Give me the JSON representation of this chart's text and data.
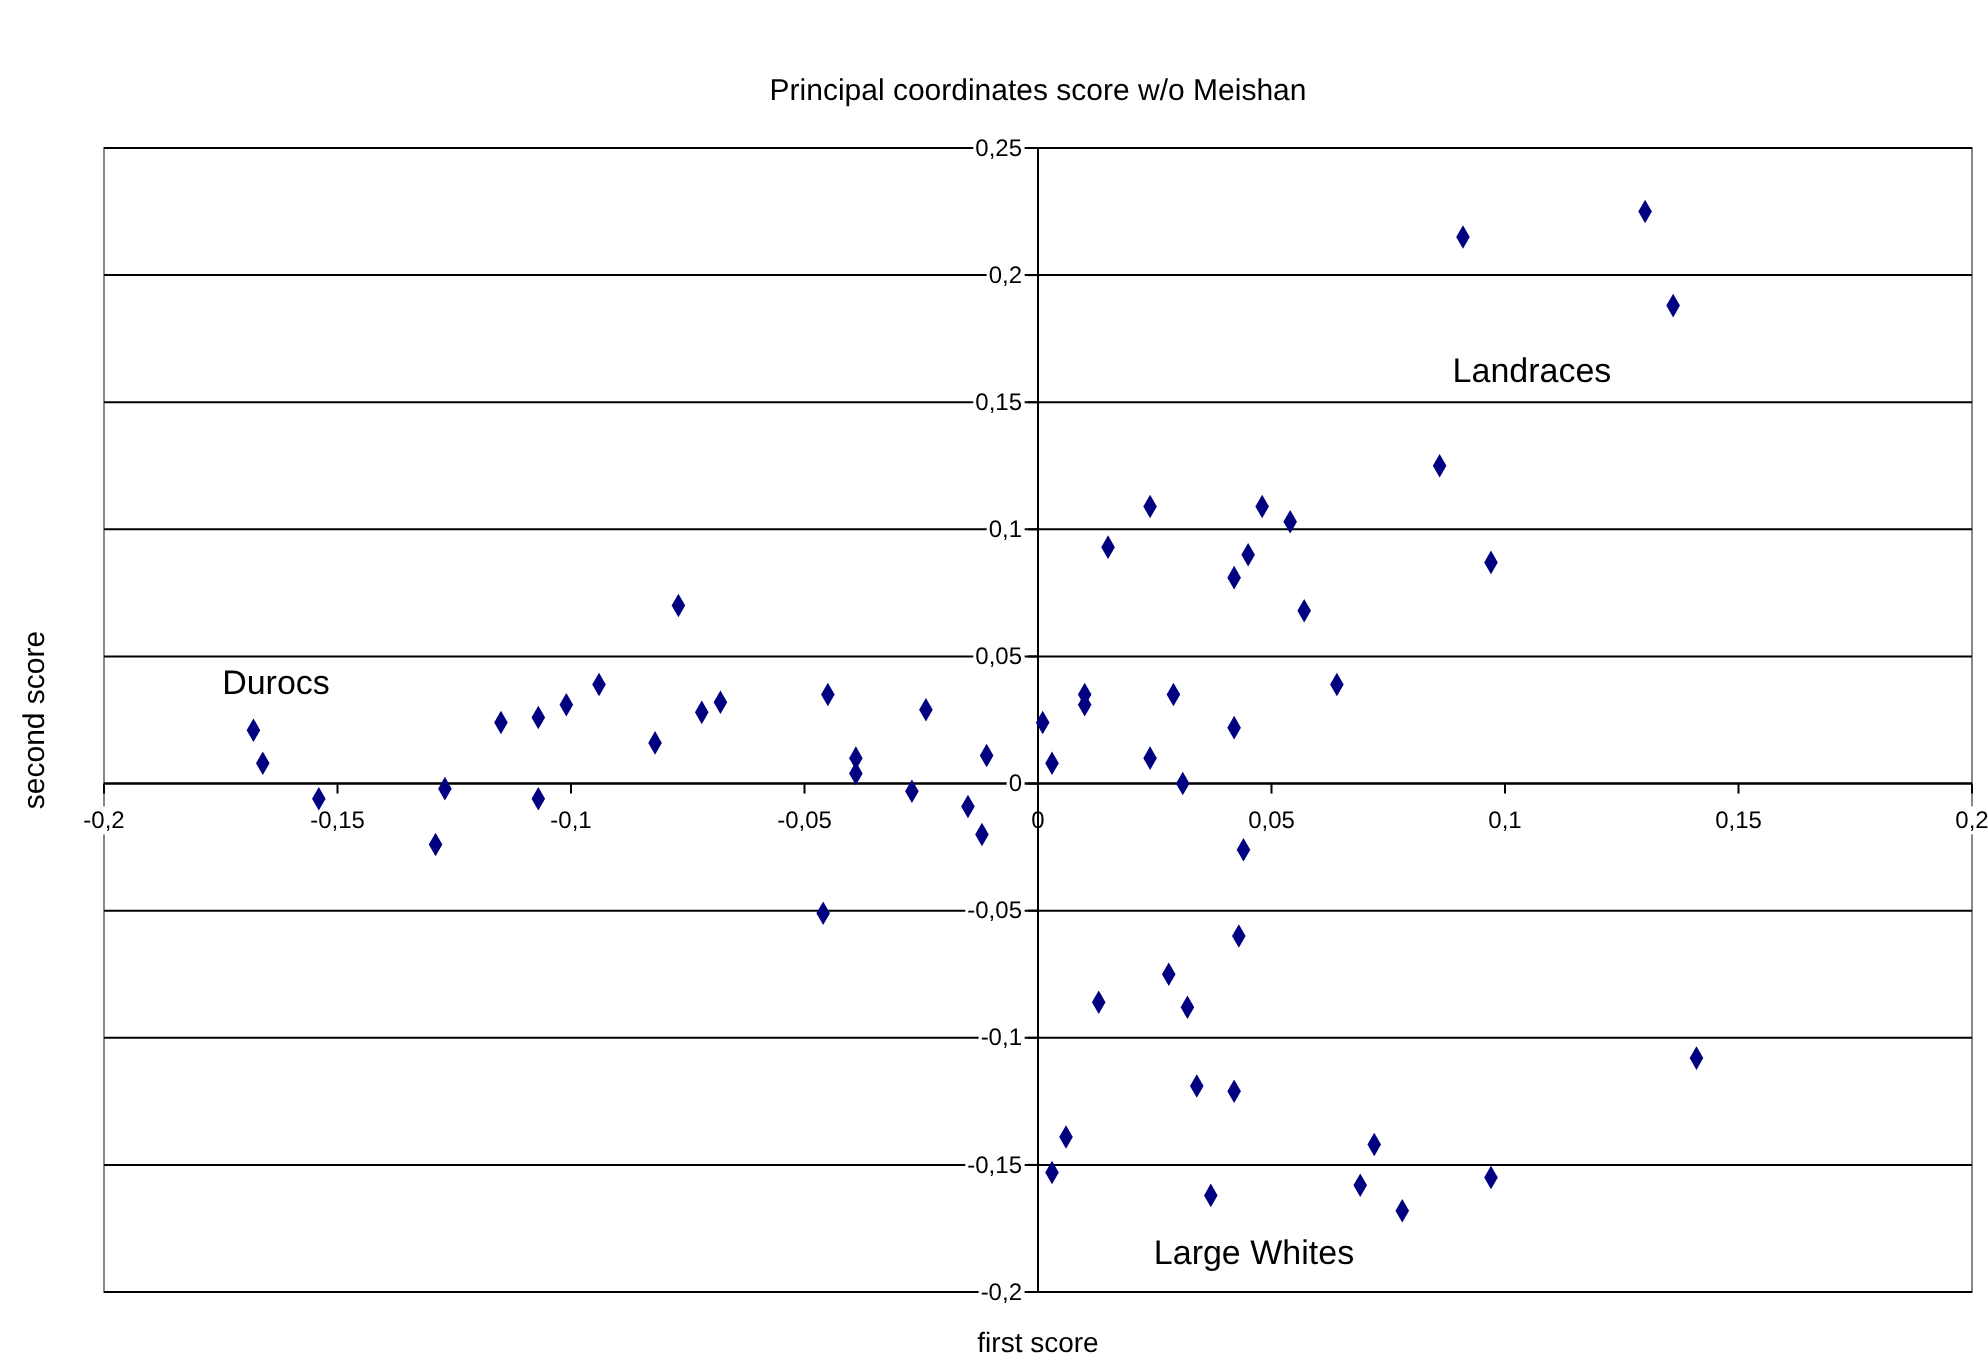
{
  "chart_data": {
    "type": "scatter",
    "title": "Principal coordinates score w/o Meishan",
    "xlabel": "first score",
    "ylabel": "second score",
    "xlim": [
      -0.2,
      0.2
    ],
    "ylim": [
      -0.2,
      0.25
    ],
    "xticks": [
      {
        "value": -0.2,
        "label": "-0,2"
      },
      {
        "value": -0.15,
        "label": "-0,15"
      },
      {
        "value": -0.1,
        "label": "-0,1"
      },
      {
        "value": -0.05,
        "label": "-0,05"
      },
      {
        "value": 0,
        "label": "0"
      },
      {
        "value": 0.05,
        "label": "0,05"
      },
      {
        "value": 0.1,
        "label": "0,1"
      },
      {
        "value": 0.15,
        "label": "0,15"
      },
      {
        "value": 0.2,
        "label": "0,2"
      }
    ],
    "yticks": [
      {
        "value": -0.2,
        "label": "-0,2"
      },
      {
        "value": -0.15,
        "label": "-0,15"
      },
      {
        "value": -0.1,
        "label": "-0,1"
      },
      {
        "value": -0.05,
        "label": "-0,05"
      },
      {
        "value": 0,
        "label": "0"
      },
      {
        "value": 0.05,
        "label": "0,05"
      },
      {
        "value": 0.1,
        "label": "0,1"
      },
      {
        "value": 0.15,
        "label": "0,15"
      },
      {
        "value": 0.2,
        "label": "0,2"
      },
      {
        "value": 0.25,
        "label": "0,25"
      }
    ],
    "grid": "y",
    "marker": "diamond",
    "annotations": [
      "Durocs",
      "Landraces",
      "Large Whites"
    ],
    "series": [
      {
        "color": "#000080",
        "x": [
          -0.168,
          -0.166,
          -0.154,
          -0.129,
          -0.127,
          -0.115,
          -0.107,
          -0.107,
          -0.101,
          -0.094,
          -0.082,
          -0.077,
          -0.072,
          -0.068,
          -0.045,
          -0.039,
          -0.039,
          -0.027,
          -0.024,
          -0.015,
          -0.011,
          -0.012,
          0.001,
          0.003,
          0.01,
          0.01,
          0.024,
          0.029,
          0.031,
          0.042,
          0.044,
          0.043,
          0.015,
          0.024,
          0.042,
          0.045,
          0.048,
          0.054,
          0.057,
          0.064,
          0.086,
          0.091,
          0.097,
          0.13,
          0.136,
          -0.046,
          0.028,
          0.013,
          0.032,
          0.034,
          0.042,
          0.006,
          0.003,
          0.037,
          0.069,
          0.072,
          0.078,
          0.097,
          0.141
        ],
        "values": [
          0.021,
          0.008,
          -0.006,
          -0.024,
          -0.002,
          0.024,
          0.026,
          -0.006,
          0.031,
          0.039,
          0.016,
          0.07,
          0.028,
          0.032,
          0.035,
          0.01,
          0.004,
          -0.003,
          0.029,
          -0.009,
          0.011,
          -0.02,
          0.024,
          0.008,
          0.035,
          0.031,
          0.01,
          0.035,
          0.0,
          0.022,
          -0.026,
          -0.06,
          0.093,
          0.109,
          0.081,
          0.09,
          0.109,
          0.103,
          0.068,
          0.039,
          0.125,
          0.215,
          0.087,
          0.225,
          0.188,
          -0.051,
          -0.075,
          -0.086,
          -0.088,
          -0.119,
          -0.121,
          -0.139,
          -0.153,
          -0.162,
          -0.158,
          -0.142,
          -0.168,
          -0.155,
          -0.108
        ]
      }
    ]
  }
}
